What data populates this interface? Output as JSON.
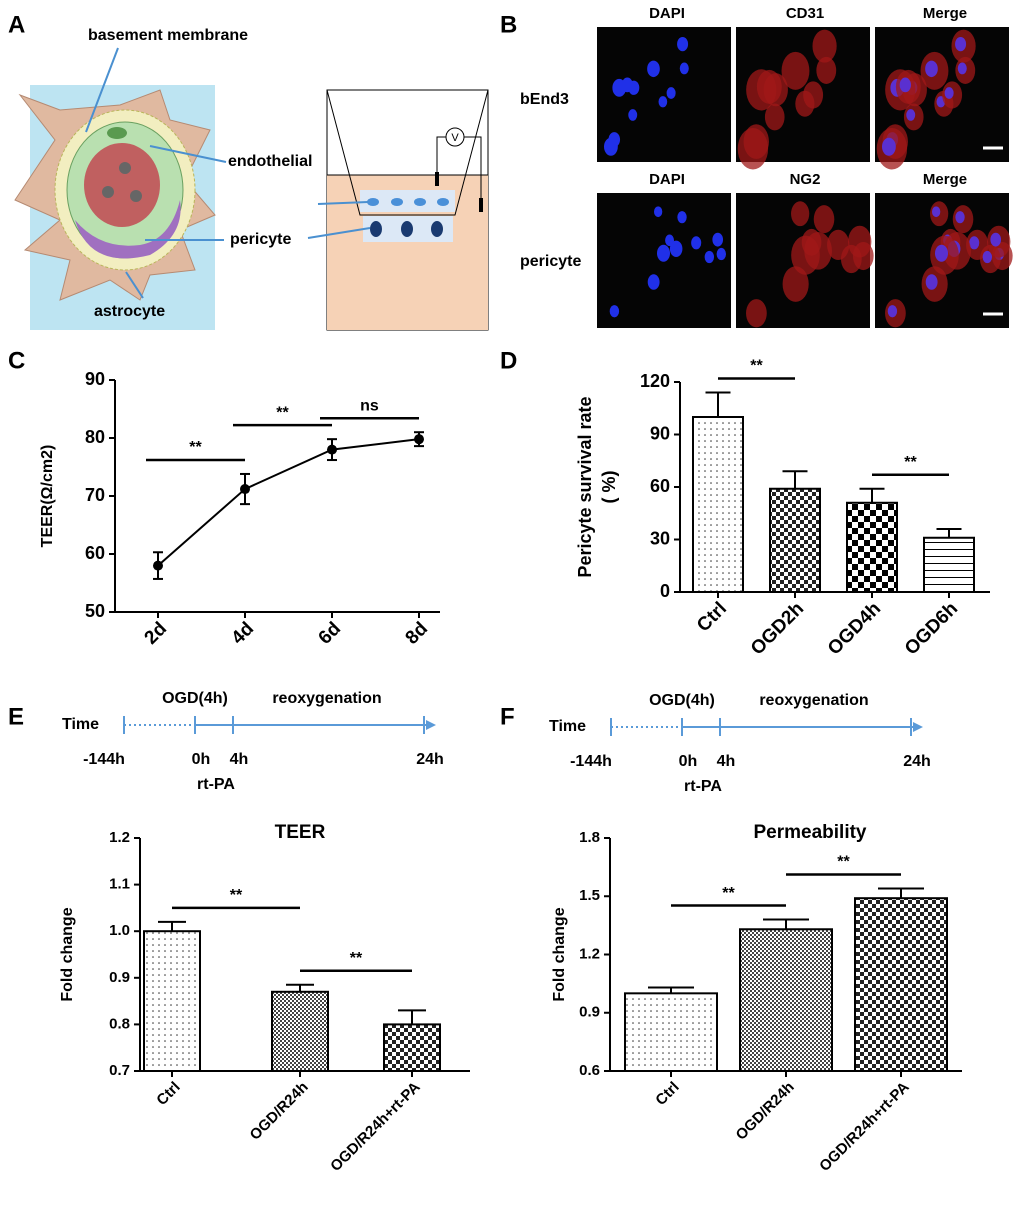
{
  "panel_labels": [
    "A",
    "B",
    "C",
    "D",
    "E",
    "F"
  ],
  "diagram": {
    "labels": [
      "basement membrane",
      "endothelial",
      "pericyte",
      "astrocyte"
    ],
    "meter": "V"
  },
  "micrographs": {
    "rows": [
      {
        "label": "bEnd3",
        "columns": [
          "DAPI",
          "CD31",
          "Merge"
        ]
      },
      {
        "label": "pericyte",
        "columns": [
          "DAPI",
          "NG2",
          "Merge"
        ]
      }
    ]
  },
  "timelines": [
    {
      "axis_label": "Time",
      "phases": [
        "OGD(4h)",
        "reoxygenation"
      ],
      "ticks": [
        "-144h",
        "0h",
        "4h",
        "24h"
      ],
      "treatment": "rt-PA"
    },
    {
      "axis_label": "Time",
      "phases": [
        "OGD(4h)",
        "reoxygenation"
      ],
      "ticks": [
        "-144h",
        "0h",
        "4h",
        "24h"
      ],
      "treatment": "rt-PA"
    }
  ],
  "chart_data": [
    {
      "type": "line",
      "ylabel": "TEER(Ω/cm2)",
      "categories": [
        "2d",
        "4d",
        "6d",
        "8d"
      ],
      "values": [
        58,
        71.2,
        78,
        79.8
      ],
      "errors": [
        2.3,
        2.6,
        1.8,
        1.2
      ],
      "color": "#000000",
      "ylim": [
        50,
        90
      ],
      "yticks": [
        50,
        60,
        70,
        80,
        90
      ],
      "annotations": [
        {
          "text": "**",
          "from": "2d",
          "to": "4d"
        },
        {
          "text": "**",
          "from": "4d",
          "to": "6d"
        },
        {
          "text": "ns",
          "from": "6d",
          "to": "8d"
        }
      ]
    },
    {
      "type": "bar",
      "ylabel": "Pericyte survival rate",
      "ylabel_unit": "( %)",
      "categories": [
        "Ctrl",
        "OGD2h",
        "OGD4h",
        "OGD6h"
      ],
      "values": [
        100,
        59,
        51,
        31
      ],
      "errors": [
        14,
        10,
        8,
        5
      ],
      "patterns": [
        "dots",
        "checker",
        "checker-large",
        "hlines"
      ],
      "ylim": [
        0,
        120
      ],
      "yticks": [
        0,
        30,
        60,
        90,
        120
      ],
      "annotations": [
        {
          "text": "**",
          "from": "Ctrl",
          "to": "OGD2h"
        },
        {
          "text": "**",
          "from": "OGD4h",
          "to": "OGD6h"
        }
      ]
    },
    {
      "type": "bar",
      "title": "TEER",
      "ylabel": "Fold change",
      "categories": [
        "Ctrl",
        "OGD/R24h",
        "OGD/R24h+rt-PA"
      ],
      "values": [
        1.0,
        0.87,
        0.8
      ],
      "errors": [
        0.02,
        0.015,
        0.03
      ],
      "patterns": [
        "dots",
        "fine-checker",
        "checker"
      ],
      "ylim": [
        0.7,
        1.2
      ],
      "yticks": [
        0.7,
        0.8,
        0.9,
        {
          "value": 1,
          "label": "1.0"
        },
        1.1,
        1.2
      ],
      "annotations": [
        {
          "text": "**",
          "from": "Ctrl",
          "to": "OGD/R24h"
        },
        {
          "text": "**",
          "from": "OGD/R24h",
          "to": "OGD/R24h+rt-PA"
        }
      ]
    },
    {
      "type": "bar",
      "title": "Permeability",
      "ylabel": "Fold change",
      "categories": [
        "Ctrl",
        "OGD/R24h",
        "OGD/R24h+rt-PA"
      ],
      "values": [
        1.0,
        1.33,
        1.49
      ],
      "errors": [
        0.03,
        0.05,
        0.05
      ],
      "patterns": [
        "dots",
        "fine-checker",
        "checker"
      ],
      "ylim": [
        0.6,
        1.8
      ],
      "yticks": [
        0.6,
        0.9,
        1.2,
        1.5,
        1.8
      ],
      "annotations": [
        {
          "text": "**",
          "from": "Ctrl",
          "to": "OGD/R24h"
        },
        {
          "text": "**",
          "from": "OGD/R24h",
          "to": "OGD/R24h+rt-PA"
        }
      ]
    }
  ]
}
